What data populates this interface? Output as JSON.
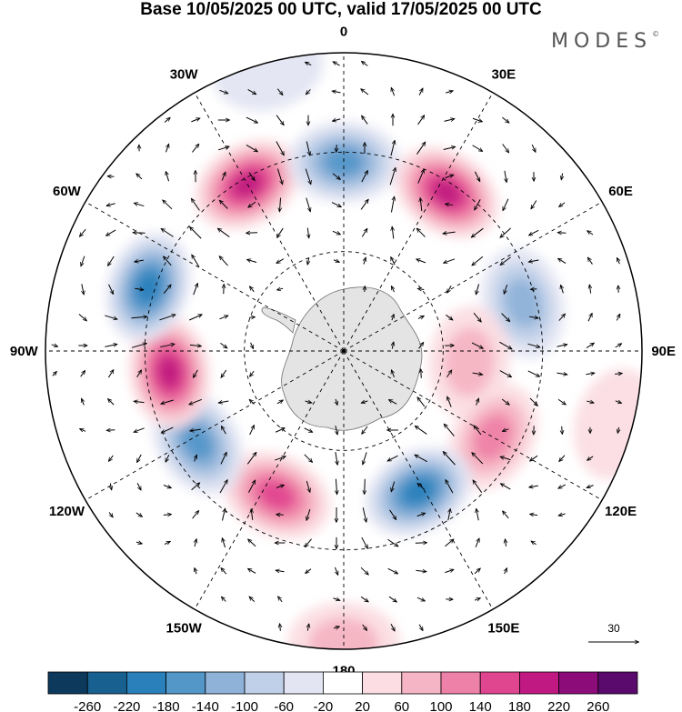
{
  "title": "Base 10/05/2025 00 UTC, valid 17/05/2025 00 UTC",
  "brand": "MODES",
  "brand_mark": "©",
  "longitude_labels": [
    "0",
    "30E",
    "60E",
    "90E",
    "120E",
    "150E",
    "180",
    "150W",
    "120W",
    "90W",
    "60W",
    "30W"
  ],
  "reference_vector": {
    "value": "30"
  },
  "colorbar": {
    "ticks": [
      "-260",
      "-220",
      "-180",
      "-140",
      "-100",
      "-60",
      "-20",
      "20",
      "60",
      "100",
      "140",
      "180",
      "220",
      "260"
    ],
    "colors": [
      "#0d3a5c",
      "#17608f",
      "#2a80bb",
      "#5397c9",
      "#8fb2d8",
      "#bfd0e8",
      "#e3e5f2",
      "#ffffff",
      "#fbdde3",
      "#f6b5c4",
      "#ee81a8",
      "#e0468f",
      "#c01981",
      "#8c0c7a",
      "#5a0a6c"
    ]
  },
  "map": {
    "projection": "south-polar-stereographic",
    "field_colors": {
      "land": "#e4e4e4",
      "coast": "#707070",
      "grid": "#000000"
    },
    "anomalies": [
      {
        "lon": -30,
        "lat_from_pole": 58,
        "value": 200
      },
      {
        "lon": 0,
        "lat_from_pole": 57,
        "value": -180
      },
      {
        "lon": 33,
        "lat_from_pole": 57,
        "value": 220
      },
      {
        "lon": 75,
        "lat_from_pole": 56,
        "value": -140
      },
      {
        "lon": 95,
        "lat_from_pole": 38,
        "value": 90
      },
      {
        "lon": 120,
        "lat_from_pole": 52,
        "value": 150
      },
      {
        "lon": 152,
        "lat_from_pole": 48,
        "value": -210
      },
      {
        "lon": -155,
        "lat_from_pole": 48,
        "value": 190
      },
      {
        "lon": -122,
        "lat_from_pole": 52,
        "value": -170
      },
      {
        "lon": -97,
        "lat_from_pole": 53,
        "value": 200
      },
      {
        "lon": -72,
        "lat_from_pole": 62,
        "value": -220
      },
      {
        "lon": 180,
        "lat_from_pole": 88,
        "value": 80
      },
      {
        "lon": -15,
        "lat_from_pole": 88,
        "value": -60
      },
      {
        "lon": 105,
        "lat_from_pole": 85,
        "value": 50
      }
    ]
  }
}
